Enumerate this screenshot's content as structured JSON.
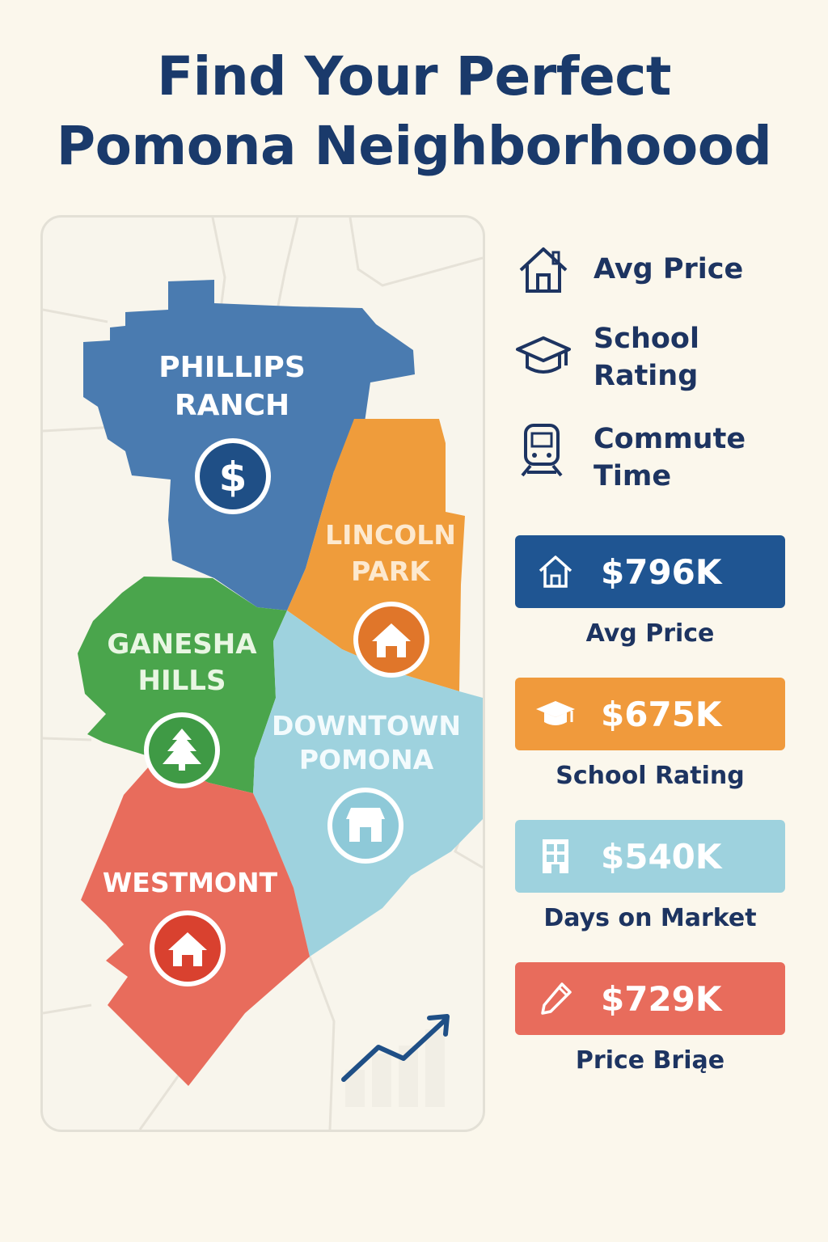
{
  "title_line1": "Find Your Perfect",
  "title_line2": "Pomona Neighborhoood",
  "map": {
    "neighborhoods": [
      {
        "name_line1": "PHILLIPS",
        "name_line2": "RANCH",
        "color": "#4a7bb0",
        "icon": "dollar-icon"
      },
      {
        "name_line1": "LINCOLN",
        "name_line2": "PARK",
        "color": "#ef9c3b",
        "icon": "house-icon"
      },
      {
        "name_line1": "GANESHA",
        "name_line2": "HILLS",
        "color": "#4aa54c",
        "icon": "tree-icon"
      },
      {
        "name_line1": "DOWNTOWN",
        "name_line2": "POMONA",
        "color": "#9ed2de",
        "icon": "storefront-icon"
      },
      {
        "name_line1": "WESTMONT",
        "name_line2": "",
        "color": "#e86c5c",
        "icon": "house-icon"
      }
    ],
    "trend_icon": "trend-up-icon"
  },
  "legend": [
    {
      "icon": "house-outline-icon",
      "label": "Avg Price"
    },
    {
      "icon": "graduation-cap-icon",
      "label": "School Rating"
    },
    {
      "icon": "train-icon",
      "label": "Commute Time"
    }
  ],
  "stats": [
    {
      "icon": "house-icon",
      "value": "$796K",
      "caption": "Avg Price",
      "color": "#1f5592"
    },
    {
      "icon": "graduation-cap-icon",
      "value": "$675K",
      "caption": "School Rating",
      "color": "#f09a3c"
    },
    {
      "icon": "building-icon",
      "value": "$540K",
      "caption": "Days on Market",
      "color": "#9ed2de"
    },
    {
      "icon": "pencil-icon",
      "value": "$729K",
      "caption": "Price Briąe",
      "color": "#e86c5c"
    }
  ]
}
